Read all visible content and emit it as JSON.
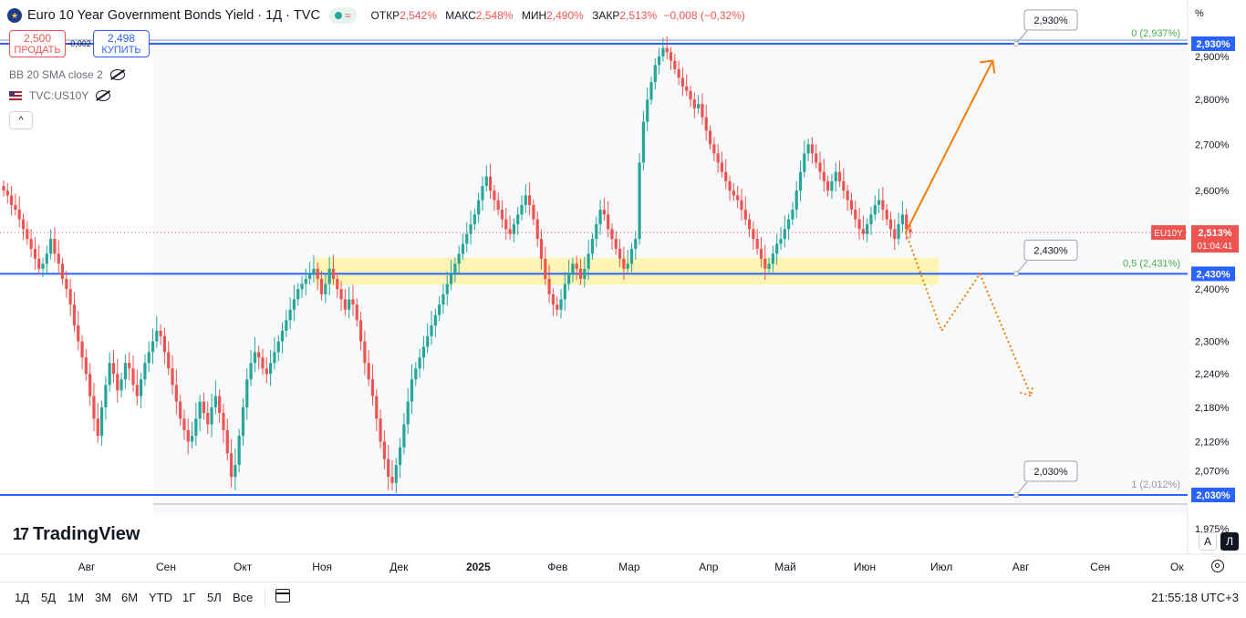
{
  "header": {
    "title": "Euro 10 Year Government Bonds Yield · 1Д · TVC",
    "wave_glyph": "≈",
    "open_label": "ОТКР",
    "open_value": "2,542%",
    "high_label": "МАКС",
    "high_value": "2,548%",
    "low_label": "МИН",
    "low_value": "2,490%",
    "close_label": "ЗАКР",
    "close_value": "2,513%",
    "change": "−0,008 (−0,32%)"
  },
  "trade": {
    "sell_price": "2,500",
    "sell_label": "ПРОДАТЬ",
    "spread": "0,002",
    "buy_price": "2,498",
    "buy_label": "КУПИТЬ"
  },
  "indicators": [
    {
      "label": "BB 20 SMA close 2"
    },
    {
      "label": "TVC:US10Y"
    }
  ],
  "collapse_glyph": "^",
  "brand": {
    "mark": "17",
    "name": "TradingView"
  },
  "price_axis_unit": "%",
  "axis_buttons": {
    "auto": "A",
    "log": "Л"
  },
  "timeframes": [
    "1Д",
    "5Д",
    "1М",
    "3М",
    "6М",
    "YTD",
    "1Г",
    "5Л",
    "Все"
  ],
  "clock": "21:55:18 UTC+3",
  "colors": {
    "up": "#26a69a",
    "down": "#ef5350",
    "level": "#2962ff",
    "zone": "#fff3a6",
    "forecast": "#f57c00",
    "fib": "#4caf50"
  },
  "chart_data": {
    "type": "candlestick",
    "symbol_tag": "EU10Y",
    "last_price": "2,513%",
    "countdown": "01:04:41",
    "y_ticks": [
      "2,900%",
      "2,800%",
      "2,700%",
      "2,600%",
      "2,400%",
      "2,300%",
      "2,240%",
      "2,180%",
      "2,120%",
      "2,070%",
      "1,975%"
    ],
    "y_tick_values": [
      2.9,
      2.8,
      2.7,
      2.6,
      2.4,
      2.3,
      2.24,
      2.18,
      2.12,
      2.07,
      1.975
    ],
    "x_labels": [
      "Авг",
      "Сен",
      "Окт",
      "Ноя",
      "Дек",
      "2025",
      "Фев",
      "Мар",
      "Апр",
      "Май",
      "Июн",
      "Июл",
      "Авг",
      "Сен",
      "Ок"
    ],
    "x_label_dates": [
      "2024-08-01",
      "2024-09-01",
      "2024-10-01",
      "2024-11-01",
      "2024-12-01",
      "2025-01-01",
      "2025-02-01",
      "2025-03-01",
      "2025-04-01",
      "2025-05-01",
      "2025-06-01",
      "2025-07-01",
      "2025-08-01",
      "2025-09-01",
      "2025-10-01"
    ],
    "levels": [
      {
        "value": 2.93,
        "label": "2,930%",
        "callout": "2,930%",
        "fib": "0 (2,937%)"
      },
      {
        "value": 2.43,
        "label": "2,430%",
        "callout": "2,430%",
        "fib": "0,5 (2,431%)"
      },
      {
        "value": 2.03,
        "label": "2,030%",
        "callout": "2,030%",
        "fib": "1 (2,012%)"
      }
    ],
    "support_zone": {
      "from": 2.41,
      "to": 2.46,
      "start": "2024-11-01",
      "end": "2025-07-01"
    },
    "forecast_up": [
      [
        "2025-06-17",
        2.513
      ],
      [
        "2025-07-21",
        2.89
      ]
    ],
    "forecast_down": [
      [
        "2025-06-17",
        2.513
      ],
      [
        "2025-07-01",
        2.32
      ],
      [
        "2025-07-16",
        2.43
      ],
      [
        "2025-08-05",
        2.2
      ]
    ],
    "closes": [
      2.6,
      2.59,
      2.57,
      2.56,
      2.54,
      2.52,
      2.5,
      2.48,
      2.46,
      2.44,
      2.45,
      2.47,
      2.5,
      2.47,
      2.45,
      2.42,
      2.4,
      2.37,
      2.33,
      2.3,
      2.27,
      2.24,
      2.2,
      2.16,
      2.13,
      2.18,
      2.22,
      2.26,
      2.24,
      2.21,
      2.23,
      2.26,
      2.25,
      2.22,
      2.2,
      2.23,
      2.26,
      2.28,
      2.3,
      2.32,
      2.31,
      2.28,
      2.25,
      2.22,
      2.19,
      2.16,
      2.14,
      2.12,
      2.13,
      2.16,
      2.19,
      2.17,
      2.15,
      2.18,
      2.2,
      2.17,
      2.14,
      2.1,
      2.06,
      2.08,
      2.13,
      2.18,
      2.23,
      2.26,
      2.28,
      2.27,
      2.25,
      2.24,
      2.26,
      2.28,
      2.3,
      2.32,
      2.34,
      2.36,
      2.38,
      2.4,
      2.41,
      2.42,
      2.43,
      2.44,
      2.42,
      2.39,
      2.41,
      2.44,
      2.42,
      2.4,
      2.38,
      2.36,
      2.38,
      2.37,
      2.34,
      2.3,
      2.26,
      2.23,
      2.2,
      2.16,
      2.12,
      2.09,
      2.06,
      2.05,
      2.08,
      2.11,
      2.15,
      2.19,
      2.23,
      2.25,
      2.27,
      2.29,
      2.31,
      2.33,
      2.35,
      2.37,
      2.39,
      2.41,
      2.43,
      2.45,
      2.47,
      2.49,
      2.51,
      2.53,
      2.55,
      2.58,
      2.61,
      2.63,
      2.6,
      2.58,
      2.56,
      2.54,
      2.52,
      2.51,
      2.53,
      2.55,
      2.57,
      2.59,
      2.57,
      2.54,
      2.5,
      2.46,
      2.42,
      2.39,
      2.37,
      2.36,
      2.38,
      2.41,
      2.43,
      2.45,
      2.44,
      2.42,
      2.44,
      2.47,
      2.5,
      2.53,
      2.56,
      2.55,
      2.52,
      2.5,
      2.48,
      2.46,
      2.44,
      2.45,
      2.48,
      2.5,
      2.66,
      2.75,
      2.8,
      2.84,
      2.88,
      2.9,
      2.92,
      2.91,
      2.89,
      2.87,
      2.85,
      2.83,
      2.82,
      2.8,
      2.78,
      2.79,
      2.76,
      2.73,
      2.7,
      2.68,
      2.66,
      2.64,
      2.62,
      2.6,
      2.59,
      2.58,
      2.56,
      2.54,
      2.52,
      2.5,
      2.48,
      2.46,
      2.44,
      2.45,
      2.47,
      2.49,
      2.5,
      2.52,
      2.54,
      2.56,
      2.6,
      2.64,
      2.68,
      2.7,
      2.68,
      2.66,
      2.64,
      2.62,
      2.6,
      2.62,
      2.64,
      2.62,
      2.6,
      2.58,
      2.56,
      2.54,
      2.52,
      2.51,
      2.53,
      2.55,
      2.57,
      2.58,
      2.56,
      2.54,
      2.52,
      2.5,
      2.53,
      2.55,
      2.52,
      2.513
    ]
  }
}
